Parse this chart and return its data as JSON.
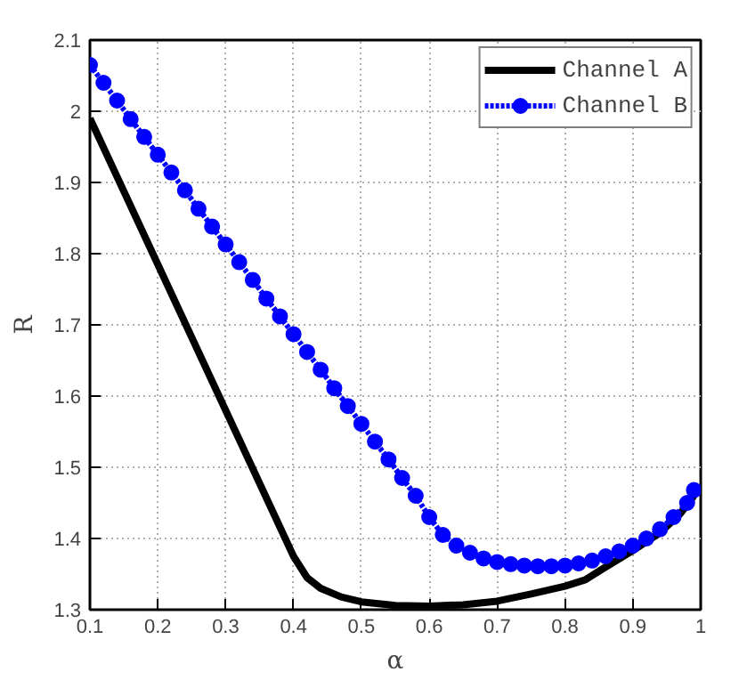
{
  "chart_data": {
    "type": "line",
    "xlabel": "α",
    "ylabel": "R",
    "xlim": [
      0.1,
      1
    ],
    "ylim": [
      1.3,
      2.1
    ],
    "xticks": [
      0.1,
      0.2,
      0.3,
      0.4,
      0.5,
      0.6,
      0.7,
      0.8,
      0.9,
      1
    ],
    "yticks": [
      1.3,
      1.4,
      1.5,
      1.6,
      1.7,
      1.8,
      1.9,
      2,
      2.1
    ],
    "grid": true,
    "legend": "top right",
    "series": [
      {
        "name": "Channel A",
        "color": "#000000",
        "marker": "none",
        "line_style": "solid",
        "x": [
          0.1,
          0.2,
          0.3,
          0.4,
          0.42,
          0.44,
          0.47,
          0.5,
          0.55,
          0.6,
          0.65,
          0.7,
          0.75,
          0.8,
          0.83,
          0.86,
          0.9,
          0.94,
          0.97,
          0.99
        ],
        "values": [
          1.99,
          1.785,
          1.58,
          1.375,
          1.345,
          1.33,
          1.318,
          1.311,
          1.306,
          1.305,
          1.307,
          1.312,
          1.322,
          1.333,
          1.342,
          1.36,
          1.383,
          1.408,
          1.435,
          1.46
        ]
      },
      {
        "name": "Channel B",
        "color": "#0000ff",
        "marker": "circle",
        "line_style": "dashed",
        "x": [
          0.1,
          0.12,
          0.14,
          0.16,
          0.18,
          0.2,
          0.22,
          0.24,
          0.26,
          0.28,
          0.3,
          0.32,
          0.34,
          0.36,
          0.38,
          0.4,
          0.42,
          0.44,
          0.46,
          0.48,
          0.5,
          0.52,
          0.54,
          0.56,
          0.58,
          0.6,
          0.62,
          0.64,
          0.66,
          0.68,
          0.7,
          0.72,
          0.74,
          0.76,
          0.78,
          0.8,
          0.82,
          0.84,
          0.86,
          0.88,
          0.9,
          0.92,
          0.94,
          0.96,
          0.98,
          0.99
        ],
        "values": [
          2.065,
          2.04,
          2.015,
          1.989,
          1.964,
          1.939,
          1.914,
          1.889,
          1.863,
          1.838,
          1.813,
          1.788,
          1.763,
          1.737,
          1.712,
          1.687,
          1.662,
          1.637,
          1.611,
          1.586,
          1.561,
          1.536,
          1.511,
          1.485,
          1.46,
          1.43,
          1.405,
          1.39,
          1.38,
          1.372,
          1.367,
          1.364,
          1.362,
          1.361,
          1.361,
          1.362,
          1.365,
          1.369,
          1.375,
          1.382,
          1.39,
          1.4,
          1.413,
          1.43,
          1.45,
          1.468
        ]
      }
    ]
  }
}
